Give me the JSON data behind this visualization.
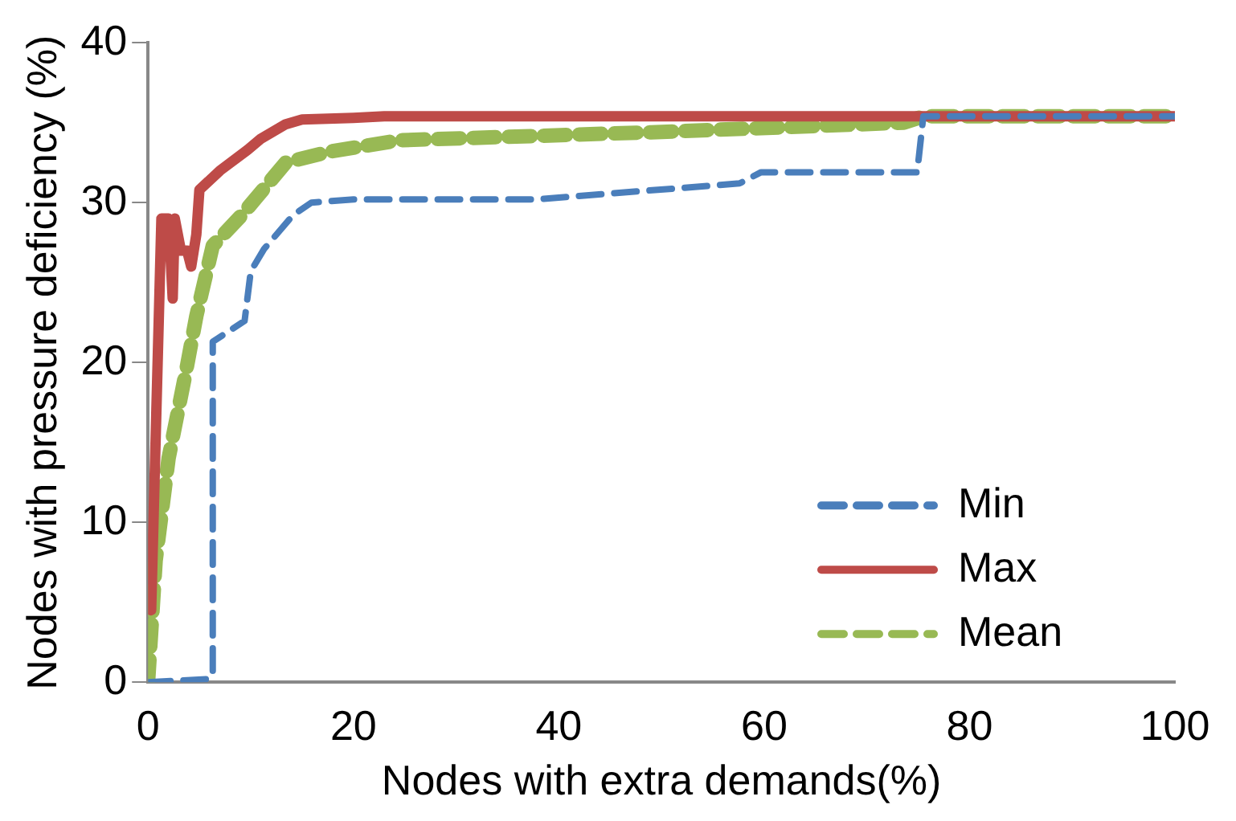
{
  "chart_data": {
    "type": "line",
    "xlabel": "Nodes with extra demands(%)",
    "ylabel": "Nodes with pressure deficiency (%)",
    "xlim": [
      0,
      100
    ],
    "xticks": [
      0,
      20,
      40,
      60,
      80,
      100
    ],
    "ylim": [
      0,
      40
    ],
    "yticks": [
      0,
      10,
      20,
      30,
      40
    ],
    "grid": false,
    "legend": "bottom right",
    "marker": "none",
    "series": [
      {
        "name": "Min",
        "color": "#4a7ebb",
        "line_style": "dashed",
        "x": [
          0,
          6,
          6.3,
          6.3,
          9.4,
          10,
          11.3,
          14.1,
          15.9,
          20,
          37.7,
          57.6,
          59.7,
          74.9,
          75.5,
          100
        ],
        "values": [
          0,
          0.2,
          0.5,
          21.3,
          22.6,
          25.7,
          27.1,
          29.2,
          30,
          30.2,
          30.2,
          31.2,
          31.9,
          31.9,
          35.4,
          35.4
        ]
      },
      {
        "name": "Max",
        "color": "#be4b48",
        "line_style": "solid",
        "x": [
          0.3,
          1.3,
          2,
          2.4,
          2.6,
          3.2,
          3.8,
          4.2,
          4.7,
          5,
          7,
          9.7,
          11,
          13.4,
          15,
          20,
          23,
          100
        ],
        "values": [
          4.5,
          29,
          29,
          24,
          29,
          27,
          27,
          26,
          28,
          30.8,
          32,
          33.3,
          34,
          34.9,
          35.2,
          35.3,
          35.4,
          35.4
        ]
      },
      {
        "name": "Mean",
        "color": "#98b954",
        "line_style": "dashed",
        "x": [
          0,
          0.74,
          2,
          3.8,
          4.7,
          6.3,
          9.1,
          13.4,
          17.8,
          24.5,
          49,
          73.6,
          75.5,
          100
        ],
        "values": [
          0,
          7.6,
          14,
          19.8,
          22.9,
          27.3,
          29.2,
          32.5,
          33.2,
          33.9,
          34.4,
          35,
          35.4,
          35.4
        ]
      }
    ]
  }
}
